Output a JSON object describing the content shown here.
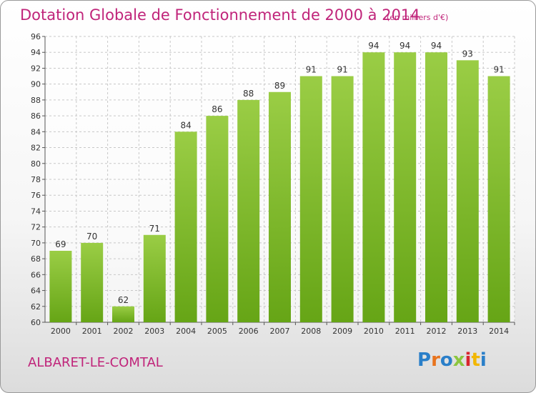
{
  "header": {
    "title": "Dotation Globale de Fonctionnement de 2000 à 2014",
    "unit": "(en milliers d'€)"
  },
  "footer": {
    "commune": "ALBARET-LE-COMTAL",
    "logo": [
      "P",
      "r",
      "o",
      "x",
      "i",
      "t",
      "i"
    ],
    "logo_colors": [
      "#2a7fc9",
      "#e8741e",
      "#2a7fc9",
      "#8cc63f",
      "#d8262e",
      "#f2b705",
      "#2a7fc9"
    ]
  },
  "chart_data": {
    "type": "bar",
    "categories": [
      "2000",
      "2001",
      "2002",
      "2003",
      "2004",
      "2005",
      "2006",
      "2007",
      "2008",
      "2009",
      "2010",
      "2011",
      "2012",
      "2013",
      "2014"
    ],
    "values": [
      69,
      70,
      62,
      71,
      84,
      86,
      88,
      89,
      91,
      91,
      94,
      94,
      94,
      93,
      91
    ],
    "ylim": [
      60,
      96
    ],
    "yticks": [
      60,
      62,
      64,
      66,
      68,
      70,
      72,
      74,
      76,
      78,
      80,
      82,
      84,
      86,
      88,
      90,
      92,
      94,
      96
    ],
    "grid": true,
    "bar_color_top": "#9acd45",
    "bar_color_bottom": "#66a516"
  }
}
